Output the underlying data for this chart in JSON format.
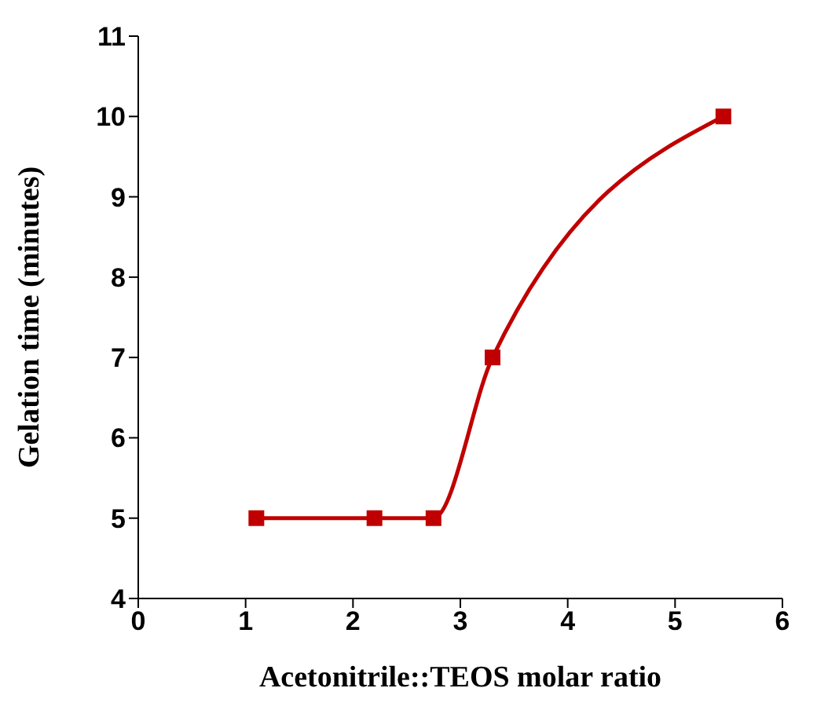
{
  "chart_data": {
    "type": "line",
    "xlabel": "Acetonitrile::TEOS molar ratio",
    "ylabel": "Gelation time (minutes)",
    "x": [
      1.1,
      2.2,
      2.75,
      3.3,
      5.45
    ],
    "series": [
      {
        "color": "#c00000",
        "values": [
          5,
          5,
          5,
          7,
          10
        ]
      }
    ],
    "xlim": [
      0,
      6
    ],
    "xticks": [
      0,
      1,
      2,
      3,
      4,
      5,
      6
    ],
    "ylim": [
      4,
      11
    ],
    "yticks": [
      4,
      5,
      6,
      7,
      8,
      9,
      10,
      11
    ],
    "marker": "square",
    "line_style": "solid",
    "grid": false,
    "legend": false
  }
}
